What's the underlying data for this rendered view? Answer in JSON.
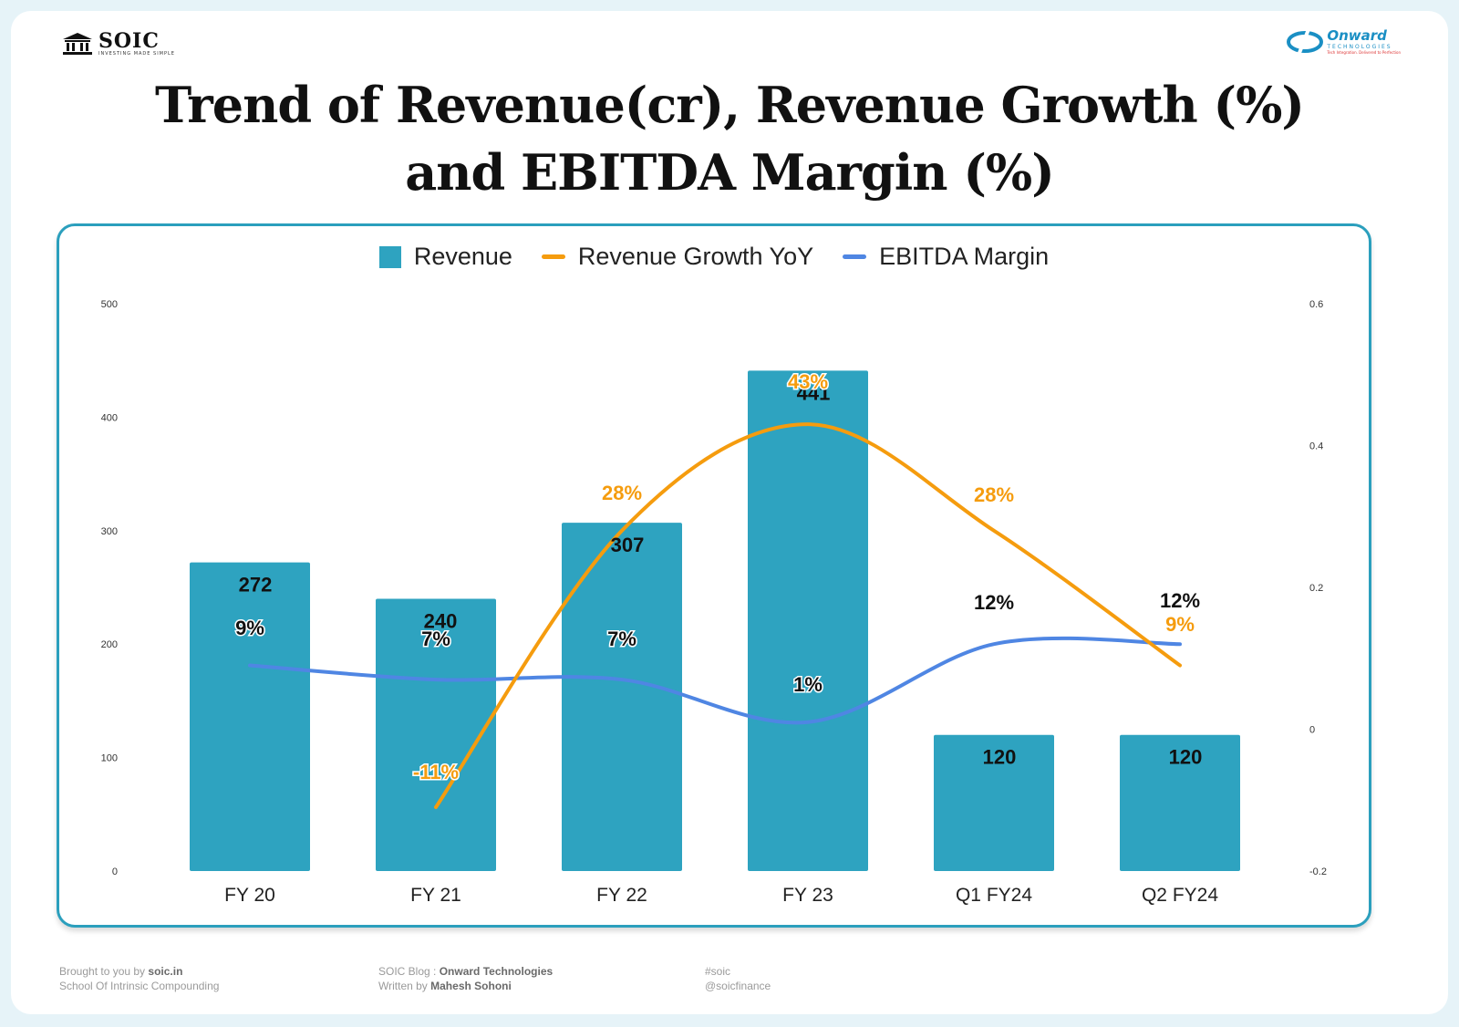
{
  "header": {
    "left_logo": {
      "brand": "SOIC",
      "tagline": "INVESTING MADE SIMPLE"
    },
    "right_logo": {
      "brand": "Onward",
      "tagline": "TECHNOLOGIES",
      "sub": "Tech Integration. Delivered to Perfection"
    },
    "title_line1": "Trend of Revenue(cr), Revenue Growth (%)",
    "title_line2": "and EBITDA Margin (%)"
  },
  "colors": {
    "revenue": "#2ea3c0",
    "growth": "#f59c0e",
    "ebitda": "#4f86e3"
  },
  "chart_data": {
    "type": "bar",
    "title": "Trend of Revenue(cr), Revenue Growth (%) and EBITDA Margin (%)",
    "categories": [
      "FY 20",
      "FY 21",
      "FY 22",
      "FY 23",
      "Q1 FY24",
      "Q2 FY24"
    ],
    "legend": [
      "Revenue",
      "Revenue Growth YoY",
      "EBITDA Margin"
    ],
    "legend_position": "top",
    "series": [
      {
        "name": "Revenue",
        "kind": "bar",
        "axis": "left",
        "values": [
          272,
          240,
          307,
          441,
          120,
          120
        ],
        "labels": [
          "272",
          "240",
          "307",
          "441",
          "120",
          "120"
        ]
      },
      {
        "name": "Revenue Growth YoY",
        "kind": "line",
        "axis": "right",
        "values": [
          null,
          -0.11,
          0.28,
          0.43,
          0.28,
          0.09
        ],
        "labels": [
          null,
          "-11%",
          "28%",
          "43%",
          "28%",
          "9%"
        ]
      },
      {
        "name": "EBITDA Margin",
        "kind": "line",
        "axis": "right",
        "values": [
          0.09,
          0.07,
          0.07,
          0.01,
          0.12,
          0.12
        ],
        "labels": [
          "9%",
          "7%",
          "7%",
          "1%",
          "12%",
          "12%"
        ]
      }
    ],
    "y_left": {
      "min": 0,
      "max": 500,
      "ticks": [
        "0",
        "100",
        "200",
        "300",
        "400",
        "500"
      ]
    },
    "y_right": {
      "min": -0.2,
      "max": 0.6,
      "ticks": [
        "-0.2",
        "0",
        "0.2",
        "0.4",
        "0.6"
      ]
    },
    "grid": false
  },
  "footer": {
    "col1_line1_prefix": "Brought to you by ",
    "col1_line1_bold": "soic.in",
    "col1_line2": "School Of Intrinsic Compounding",
    "col2_line1_prefix": "SOIC Blog : ",
    "col2_line1_bold": "Onward Technologies",
    "col2_line2_prefix": "Written by ",
    "col2_line2_bold": "Mahesh Sohoni",
    "col3_line1": "#soic",
    "col3_line2": "@soicfinance"
  }
}
